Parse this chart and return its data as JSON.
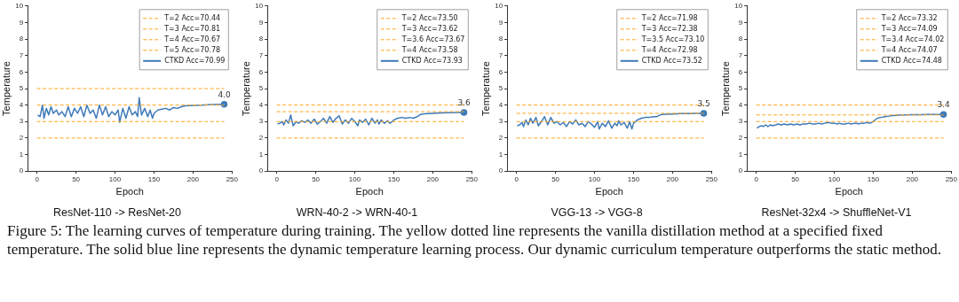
{
  "chart_data": [
    {
      "type": "line",
      "subtitle": "ResNet-110 -> ResNet-20",
      "xlabel": "Epoch",
      "ylabel": "Temperature",
      "xlim": [
        -12,
        250
      ],
      "xticks": [
        0,
        50,
        100,
        150,
        200,
        250
      ],
      "ylim": [
        0,
        10
      ],
      "yticks": [
        0,
        1,
        2,
        3,
        4,
        5,
        6,
        7,
        8,
        9,
        10
      ],
      "grid": false,
      "legend": "top right",
      "annotations": [
        "Figure 5: The learning curves of temperature during training. The yellow dotted line represents the vanilla distillation method at a specified fixed temperature. The solid blue line represents the dynamic temperature learning process. Our dynamic curriculum temperature outperforms the static method."
      ],
      "series": [
        {
          "name": "T=2 Acc=70.44",
          "color": "#ffa51f",
          "line_style": "dashed",
          "x": [
            0,
            240
          ],
          "values": [
            2,
            2
          ]
        },
        {
          "name": "T=3 Acc=70.81",
          "color": "#ffa51f",
          "line_style": "dashed",
          "x": [
            0,
            240
          ],
          "values": [
            3,
            3
          ]
        },
        {
          "name": "T=4 Acc=70.67",
          "color": "#ffa51f",
          "line_style": "dashed",
          "x": [
            0,
            240
          ],
          "values": [
            4,
            4
          ]
        },
        {
          "name": "T=5 Acc=70.78",
          "color": "#ffa51f",
          "line_style": "dashed",
          "x": [
            0,
            240
          ],
          "values": [
            5,
            5
          ]
        },
        {
          "name": "CTKD Acc=70.99",
          "color": "#3f7ab8",
          "line_style": "solid",
          "x": [
            1,
            4,
            7,
            9,
            12,
            15,
            18,
            21,
            25,
            28,
            32,
            36,
            40,
            44,
            48,
            52,
            56,
            60,
            64,
            68,
            72,
            76,
            80,
            84,
            88,
            92,
            96,
            100,
            104,
            106,
            110,
            114,
            118,
            122,
            126,
            129,
            131,
            134,
            138,
            142,
            145,
            148,
            150,
            155,
            160,
            165,
            170,
            175,
            180,
            185,
            190,
            200,
            210,
            220,
            230,
            240
          ],
          "values": [
            3.4,
            3.3,
            4.0,
            3.2,
            3.8,
            3.4,
            3.9,
            3.5,
            3.7,
            3.4,
            3.6,
            3.3,
            3.9,
            3.3,
            3.8,
            3.5,
            3.9,
            3.3,
            4.0,
            3.5,
            3.7,
            3.2,
            4.0,
            3.4,
            3.9,
            3.3,
            3.6,
            3.4,
            3.7,
            2.95,
            3.8,
            3.2,
            3.9,
            3.4,
            3.6,
            3.3,
            4.45,
            3.4,
            3.8,
            3.3,
            3.7,
            3.2,
            3.5,
            3.7,
            3.75,
            3.8,
            3.7,
            3.85,
            3.8,
            3.9,
            3.95,
            3.98,
            4.0,
            4.02,
            4.03,
            4.05
          ],
          "value_labels": [
            null,
            null,
            null,
            null,
            null,
            null,
            null,
            null,
            null,
            null,
            null,
            null,
            null,
            null,
            null,
            null,
            null,
            null,
            null,
            null,
            null,
            null,
            null,
            null,
            null,
            null,
            null,
            null,
            null,
            null,
            null,
            null,
            null,
            null,
            null,
            null,
            null,
            null,
            null,
            null,
            null,
            null,
            null,
            null,
            null,
            null,
            null,
            null,
            null,
            null,
            null,
            null,
            null,
            null,
            null,
            "4.0"
          ]
        }
      ]
    },
    {
      "type": "line",
      "subtitle": "WRN-40-2 -> WRN-40-1",
      "xlabel": "Epoch",
      "ylabel": "Temperature",
      "xlim": [
        -12,
        250
      ],
      "xticks": [
        0,
        50,
        100,
        150,
        200,
        250
      ],
      "ylim": [
        0,
        10
      ],
      "yticks": [
        0,
        1,
        2,
        3,
        4,
        5,
        6,
        7,
        8,
        9,
        10
      ],
      "grid": false,
      "legend": "top right",
      "series": [
        {
          "name": "T=2 Acc=73.50",
          "color": "#ffa51f",
          "line_style": "dashed",
          "x": [
            0,
            240
          ],
          "values": [
            2,
            2
          ]
        },
        {
          "name": "T=3 Acc=73.62",
          "color": "#ffa51f",
          "line_style": "dashed",
          "x": [
            0,
            240
          ],
          "values": [
            3,
            3
          ]
        },
        {
          "name": "T=3.6 Acc=73.67",
          "color": "#ffa51f",
          "line_style": "dashed",
          "x": [
            0,
            240
          ],
          "values": [
            3.6,
            3.6
          ]
        },
        {
          "name": "T=4 Acc=73.58",
          "color": "#ffa51f",
          "line_style": "dashed",
          "x": [
            0,
            240
          ],
          "values": [
            4,
            4
          ]
        },
        {
          "name": "CTKD Acc=73.93",
          "color": "#3f7ab8",
          "line_style": "solid",
          "x": [
            1,
            4,
            7,
            9,
            12,
            15,
            18,
            21,
            25,
            28,
            32,
            36,
            40,
            44,
            48,
            52,
            56,
            60,
            64,
            68,
            72,
            76,
            80,
            84,
            88,
            92,
            96,
            100,
            104,
            106,
            110,
            114,
            118,
            122,
            126,
            129,
            131,
            134,
            138,
            142,
            145,
            148,
            150,
            155,
            160,
            165,
            170,
            175,
            180,
            185,
            190,
            200,
            210,
            220,
            230,
            240
          ],
          "values": [
            2.85,
            2.9,
            3.0,
            2.8,
            3.1,
            2.9,
            3.4,
            2.75,
            3.0,
            2.9,
            3.05,
            2.95,
            3.1,
            2.9,
            3.15,
            2.85,
            3.0,
            3.2,
            2.9,
            3.3,
            2.95,
            3.2,
            3.35,
            2.85,
            3.1,
            2.9,
            3.2,
            3.0,
            2.75,
            3.1,
            2.95,
            3.15,
            2.8,
            3.2,
            2.9,
            3.1,
            2.85,
            3.1,
            2.9,
            3.05,
            2.9,
            3.0,
            3.1,
            3.2,
            3.25,
            3.2,
            3.25,
            3.2,
            3.3,
            3.45,
            3.47,
            3.5,
            3.52,
            3.54,
            3.55,
            3.55
          ],
          "value_labels": [
            null,
            null,
            null,
            null,
            null,
            null,
            null,
            null,
            null,
            null,
            null,
            null,
            null,
            null,
            null,
            null,
            null,
            null,
            null,
            null,
            null,
            null,
            null,
            null,
            null,
            null,
            null,
            null,
            null,
            null,
            null,
            null,
            null,
            null,
            null,
            null,
            null,
            null,
            null,
            null,
            null,
            null,
            null,
            null,
            null,
            null,
            null,
            null,
            null,
            null,
            null,
            null,
            null,
            null,
            null,
            "3.6"
          ]
        }
      ]
    },
    {
      "type": "line",
      "subtitle": "VGG-13 -> VGG-8",
      "xlabel": "Epoch",
      "ylabel": "Temperature",
      "xlim": [
        -12,
        250
      ],
      "xticks": [
        0,
        50,
        100,
        150,
        200,
        250
      ],
      "ylim": [
        0,
        10
      ],
      "yticks": [
        0,
        1,
        2,
        3,
        4,
        5,
        6,
        7,
        8,
        9,
        10
      ],
      "grid": false,
      "legend": "top right",
      "series": [
        {
          "name": "T=2 Acc=71.98",
          "color": "#ffa51f",
          "line_style": "dashed",
          "x": [
            0,
            240
          ],
          "values": [
            2,
            2
          ]
        },
        {
          "name": "T=3 Acc=72.38",
          "color": "#ffa51f",
          "line_style": "dashed",
          "x": [
            0,
            240
          ],
          "values": [
            3,
            3
          ]
        },
        {
          "name": "T=3.5 Acc=73.10",
          "color": "#ffa51f",
          "line_style": "dashed",
          "x": [
            0,
            240
          ],
          "values": [
            3.5,
            3.5
          ]
        },
        {
          "name": "T=4 Acc=72.98",
          "color": "#ffa51f",
          "line_style": "dashed",
          "x": [
            0,
            240
          ],
          "values": [
            4,
            4
          ]
        },
        {
          "name": "CTKD Acc=73.52",
          "color": "#3f7ab8",
          "line_style": "solid",
          "x": [
            1,
            4,
            7,
            9,
            12,
            15,
            18,
            21,
            25,
            28,
            32,
            36,
            40,
            44,
            48,
            52,
            56,
            60,
            64,
            68,
            72,
            76,
            80,
            84,
            88,
            92,
            96,
            100,
            104,
            106,
            110,
            114,
            118,
            122,
            126,
            129,
            131,
            134,
            138,
            142,
            145,
            148,
            150,
            155,
            160,
            165,
            170,
            175,
            180,
            185,
            190,
            200,
            210,
            220,
            230,
            240
          ],
          "values": [
            2.75,
            2.8,
            2.95,
            2.7,
            3.1,
            2.8,
            3.2,
            2.9,
            3.25,
            2.75,
            3.0,
            3.3,
            2.8,
            3.25,
            2.9,
            3.0,
            2.8,
            2.95,
            2.7,
            3.0,
            2.85,
            3.1,
            2.8,
            2.9,
            2.7,
            3.0,
            2.85,
            2.65,
            3.0,
            2.55,
            2.9,
            2.7,
            3.05,
            2.6,
            2.9,
            2.75,
            3.05,
            2.8,
            2.95,
            2.6,
            3.0,
            2.55,
            2.9,
            3.1,
            3.2,
            3.25,
            3.25,
            3.3,
            3.3,
            3.42,
            3.44,
            3.46,
            3.48,
            3.49,
            3.5,
            3.5
          ],
          "value_labels": [
            null,
            null,
            null,
            null,
            null,
            null,
            null,
            null,
            null,
            null,
            null,
            null,
            null,
            null,
            null,
            null,
            null,
            null,
            null,
            null,
            null,
            null,
            null,
            null,
            null,
            null,
            null,
            null,
            null,
            null,
            null,
            null,
            null,
            null,
            null,
            null,
            null,
            null,
            null,
            null,
            null,
            null,
            null,
            null,
            null,
            null,
            null,
            null,
            null,
            null,
            null,
            null,
            null,
            null,
            null,
            "3.5"
          ]
        }
      ]
    },
    {
      "type": "line",
      "subtitle": "ResNet-32x4 -> ShuffleNet-V1",
      "xlabel": "Epoch",
      "ylabel": "Temperature",
      "xlim": [
        -12,
        250
      ],
      "xticks": [
        0,
        50,
        100,
        150,
        200,
        250
      ],
      "ylim": [
        0,
        10
      ],
      "yticks": [
        0,
        1,
        2,
        3,
        4,
        5,
        6,
        7,
        8,
        9,
        10
      ],
      "grid": false,
      "legend": "top right",
      "series": [
        {
          "name": "T=2 Acc=73.32",
          "color": "#ffa51f",
          "line_style": "dashed",
          "x": [
            0,
            240
          ],
          "values": [
            2,
            2
          ]
        },
        {
          "name": "T=3 Acc=74.09",
          "color": "#ffa51f",
          "line_style": "dashed",
          "x": [
            0,
            240
          ],
          "values": [
            3,
            3
          ]
        },
        {
          "name": "T=3.4 Acc=74.02",
          "color": "#ffa51f",
          "line_style": "dashed",
          "x": [
            0,
            240
          ],
          "values": [
            3.4,
            3.4
          ]
        },
        {
          "name": "T=4 Acc=74.07",
          "color": "#ffa51f",
          "line_style": "dashed",
          "x": [
            0,
            240
          ],
          "values": [
            4,
            4
          ]
        },
        {
          "name": "CTKD Acc=74.48",
          "color": "#3f7ab8",
          "line_style": "solid",
          "x": [
            1,
            4,
            7,
            9,
            12,
            15,
            18,
            21,
            25,
            28,
            32,
            36,
            40,
            44,
            48,
            52,
            56,
            60,
            64,
            68,
            72,
            76,
            80,
            84,
            88,
            92,
            96,
            100,
            104,
            106,
            110,
            114,
            118,
            122,
            126,
            129,
            131,
            134,
            138,
            142,
            145,
            148,
            150,
            155,
            160,
            165,
            170,
            175,
            180,
            185,
            190,
            200,
            210,
            220,
            230,
            240
          ],
          "values": [
            2.6,
            2.7,
            2.75,
            2.7,
            2.8,
            2.7,
            2.8,
            2.75,
            2.8,
            2.85,
            2.8,
            2.85,
            2.8,
            2.85,
            2.8,
            2.85,
            2.8,
            2.85,
            2.85,
            2.9,
            2.85,
            2.85,
            2.9,
            2.85,
            2.9,
            2.95,
            2.9,
            2.9,
            2.85,
            2.9,
            2.85,
            2.85,
            2.9,
            2.85,
            2.9,
            2.9,
            2.85,
            2.9,
            2.9,
            2.95,
            2.9,
            2.95,
            3.0,
            3.2,
            3.25,
            3.3,
            3.33,
            3.36,
            3.38,
            3.4,
            3.41,
            3.42,
            3.42,
            3.43,
            3.43,
            3.43
          ],
          "value_labels": [
            null,
            null,
            null,
            null,
            null,
            null,
            null,
            null,
            null,
            null,
            null,
            null,
            null,
            null,
            null,
            null,
            null,
            null,
            null,
            null,
            null,
            null,
            null,
            null,
            null,
            null,
            null,
            null,
            null,
            null,
            null,
            null,
            null,
            null,
            null,
            null,
            null,
            null,
            null,
            null,
            null,
            null,
            null,
            null,
            null,
            null,
            null,
            null,
            null,
            null,
            null,
            null,
            null,
            null,
            null,
            "3.4"
          ]
        }
      ]
    }
  ]
}
